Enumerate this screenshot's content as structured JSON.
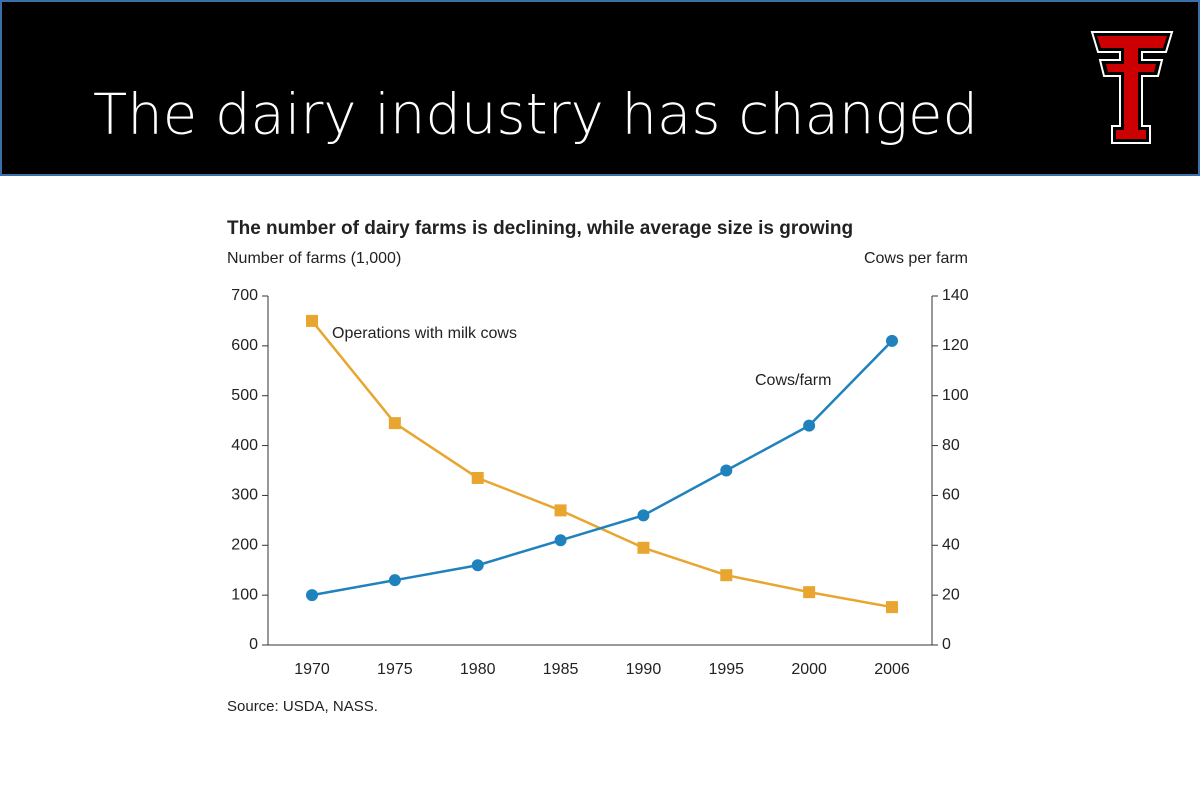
{
  "slide_title": "The dairy industry has changed",
  "chart_data": {
    "type": "line",
    "title": "The number of dairy farms is declining, while average size is growing",
    "y_label": "Number of farms (1,000)",
    "y2_label": "Cows per farm",
    "source": "Source: USDA, NASS.",
    "categories": [
      "1970",
      "1975",
      "1980",
      "1985",
      "1990",
      "1995",
      "2000",
      "2006"
    ],
    "series": [
      {
        "name": "Operations with milk cows",
        "color": "#e8a630",
        "marker": "square",
        "axis": "y",
        "values": [
          650,
          445,
          335,
          270,
          195,
          140,
          106,
          76
        ]
      },
      {
        "name": "Cows/farm",
        "color": "#1f82bd",
        "marker": "circle",
        "axis": "y2",
        "values": [
          20,
          26,
          32,
          42,
          52,
          70,
          88,
          122
        ]
      }
    ],
    "ylim": [
      0,
      700
    ],
    "yticks": [
      0,
      100,
      200,
      300,
      400,
      500,
      600,
      700
    ],
    "y2lim": [
      0,
      140
    ],
    "y2ticks": [
      0,
      20,
      40,
      60,
      80,
      100,
      120,
      140
    ],
    "grid": false
  }
}
